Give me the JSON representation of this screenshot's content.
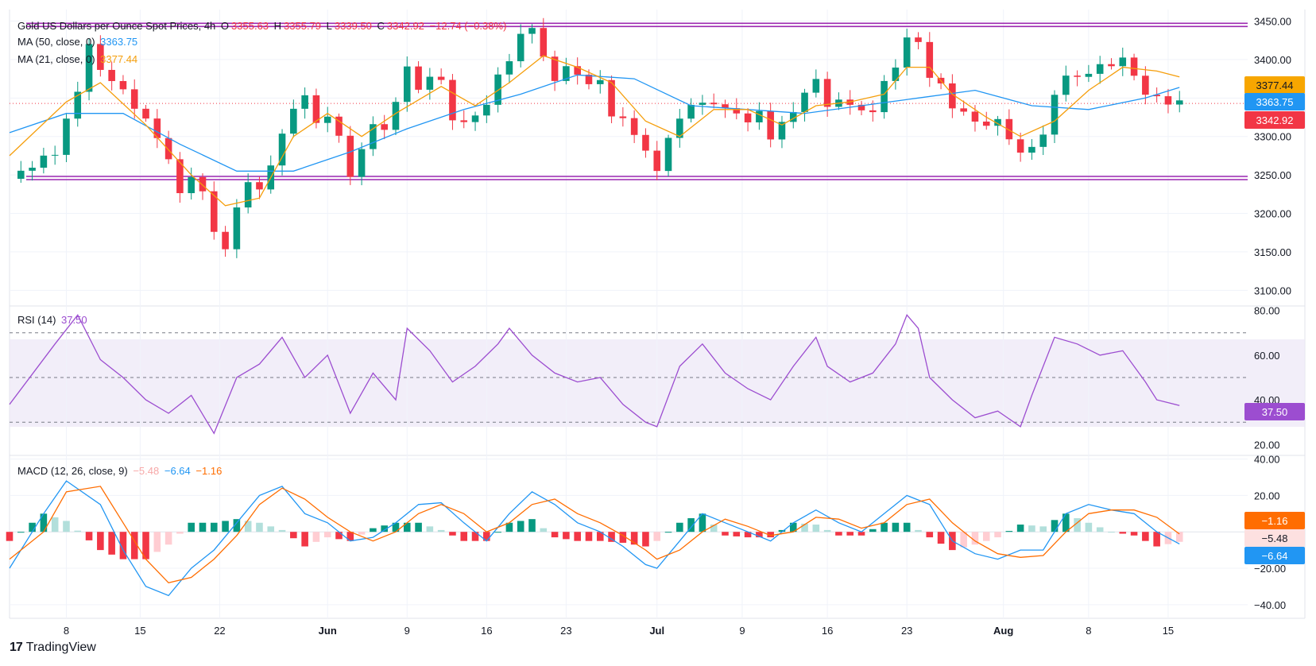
{
  "header": {
    "symbol": "Gold US Dollars per Ounce Spot Prices, 4h",
    "o_label": "O",
    "o_value": "3355.63",
    "h_label": "H",
    "h_value": "3355.79",
    "l_label": "L",
    "l_value": "3339.50",
    "c_label": "C",
    "c_value": "3342.92",
    "change": "−12.74 (−0.38%)"
  },
  "indicators": {
    "ma50": {
      "label": "MA (50, close, 0)",
      "value": "3363.75",
      "color": "#2196f3"
    },
    "ma21": {
      "label": "MA (21, close, 0)",
      "value": "3377.44",
      "color": "#f59e0b"
    },
    "rsi": {
      "label": "RSI (14)",
      "value": "37.50",
      "color": "#9c4dd0"
    },
    "macd": {
      "label": "MACD (12, 26, close, 9)",
      "hist": "−5.48",
      "macd": "−6.64",
      "signal": "−1.16",
      "hist_color": "#f7a8a8",
      "macd_color": "#2196f3",
      "signal_color": "#ff6d00"
    }
  },
  "price_tags": {
    "ma21": "3377.44",
    "ma50": "3363.75",
    "close": "3342.92",
    "rsi": "37.50",
    "macd_signal": "−1.16",
    "macd_hist": "−5.48",
    "macd_line": "−6.64"
  },
  "footer": {
    "logo": "17",
    "brand": "TradingView"
  },
  "chart_data": [
    {
      "type": "candlestick",
      "title": "Gold US Dollars per Ounce Spot Prices, 4h",
      "x_ticks": [
        "8",
        "15",
        "22",
        "Jun",
        "9",
        "16",
        "23",
        "Jul",
        "9",
        "16",
        "23",
        "Aug",
        "8",
        "15"
      ],
      "y_ticks": [
        "3450.00",
        "3400.00",
        "3350.00",
        "3300.00",
        "3250.00",
        "3200.00",
        "3150.00",
        "3100.00"
      ],
      "ylim": [
        3090,
        3465
      ],
      "close_path": [
        [
          0,
          3245
        ],
        [
          4,
          3280
        ],
        [
          6,
          3360
        ],
        [
          7,
          3420
        ],
        [
          8,
          3385
        ],
        [
          9,
          3375
        ],
        [
          11,
          3340
        ],
        [
          12,
          3320
        ],
        [
          13,
          3300
        ],
        [
          14,
          3270
        ],
        [
          15,
          3225
        ],
        [
          16,
          3250
        ],
        [
          17,
          3225
        ],
        [
          18,
          3180
        ],
        [
          19,
          3150
        ],
        [
          20,
          3210
        ],
        [
          21,
          3240
        ],
        [
          22,
          3230
        ],
        [
          23,
          3265
        ],
        [
          24,
          3300
        ],
        [
          25,
          3340
        ],
        [
          26,
          3350
        ],
        [
          27,
          3320
        ],
        [
          28,
          3325
        ],
        [
          29,
          3300
        ],
        [
          30,
          3250
        ],
        [
          31,
          3280
        ],
        [
          32,
          3320
        ],
        [
          33,
          3305
        ],
        [
          35,
          3390
        ],
        [
          36,
          3360
        ],
        [
          37,
          3380
        ],
        [
          38,
          3370
        ],
        [
          39,
          3325
        ],
        [
          40,
          3315
        ],
        [
          41,
          3330
        ],
        [
          42,
          3340
        ],
        [
          43,
          3380
        ],
        [
          44,
          3400
        ],
        [
          45,
          3430
        ],
        [
          46,
          3445
        ],
        [
          47,
          3400
        ],
        [
          48,
          3375
        ],
        [
          49,
          3390
        ],
        [
          50,
          3380
        ],
        [
          51,
          3370
        ],
        [
          52,
          3370
        ],
        [
          53,
          3330
        ],
        [
          54,
          3320
        ],
        [
          55,
          3305
        ],
        [
          56,
          3280
        ],
        [
          57,
          3255
        ],
        [
          58,
          3300
        ],
        [
          59,
          3320
        ],
        [
          60,
          3345
        ],
        [
          61,
          3340
        ],
        [
          62,
          3345
        ],
        [
          63,
          3335
        ],
        [
          64,
          3330
        ],
        [
          65,
          3320
        ],
        [
          66,
          3330
        ],
        [
          67,
          3300
        ],
        [
          68,
          3315
        ],
        [
          69,
          3335
        ],
        [
          70,
          3355
        ],
        [
          71,
          3375
        ],
        [
          72,
          3340
        ],
        [
          73,
          3345
        ],
        [
          74,
          3345
        ],
        [
          75,
          3330
        ],
        [
          76,
          3335
        ],
        [
          77,
          3370
        ],
        [
          78,
          3390
        ],
        [
          79,
          3430
        ],
        [
          80,
          3420
        ],
        [
          81,
          3380
        ],
        [
          82,
          3365
        ],
        [
          83,
          3340
        ],
        [
          84,
          3330
        ],
        [
          85,
          3320
        ],
        [
          86,
          3315
        ],
        [
          87,
          3320
        ],
        [
          88,
          3300
        ],
        [
          89,
          3275
        ],
        [
          90,
          3290
        ],
        [
          91,
          3300
        ],
        [
          92,
          3355
        ],
        [
          93,
          3380
        ],
        [
          94,
          3375
        ],
        [
          95,
          3385
        ],
        [
          96,
          3390
        ],
        [
          97,
          3395
        ],
        [
          98,
          3400
        ],
        [
          99,
          3380
        ],
        [
          100,
          3355
        ],
        [
          101,
          3350
        ],
        [
          102,
          3345
        ],
        [
          103,
          3342.92
        ]
      ],
      "ma50_path": [
        [
          0,
          3305
        ],
        [
          5,
          3330
        ],
        [
          10,
          3330
        ],
        [
          15,
          3290
        ],
        [
          20,
          3255
        ],
        [
          25,
          3255
        ],
        [
          30,
          3280
        ],
        [
          35,
          3310
        ],
        [
          40,
          3335
        ],
        [
          45,
          3355
        ],
        [
          50,
          3380
        ],
        [
          55,
          3375
        ],
        [
          60,
          3340
        ],
        [
          65,
          3335
        ],
        [
          70,
          3330
        ],
        [
          75,
          3340
        ],
        [
          80,
          3350
        ],
        [
          85,
          3360
        ],
        [
          90,
          3340
        ],
        [
          95,
          3335
        ],
        [
          100,
          3350
        ],
        [
          103,
          3363.75
        ]
      ],
      "ma21_path": [
        [
          0,
          3275
        ],
        [
          5,
          3345
        ],
        [
          8,
          3370
        ],
        [
          12,
          3315
        ],
        [
          16,
          3250
        ],
        [
          19,
          3210
        ],
        [
          22,
          3220
        ],
        [
          25,
          3300
        ],
        [
          28,
          3330
        ],
        [
          31,
          3300
        ],
        [
          34,
          3330
        ],
        [
          38,
          3365
        ],
        [
          41,
          3340
        ],
        [
          44,
          3370
        ],
        [
          47,
          3405
        ],
        [
          50,
          3390
        ],
        [
          53,
          3370
        ],
        [
          56,
          3320
        ],
        [
          59,
          3300
        ],
        [
          62,
          3335
        ],
        [
          65,
          3335
        ],
        [
          68,
          3315
        ],
        [
          71,
          3340
        ],
        [
          74,
          3345
        ],
        [
          77,
          3355
        ],
        [
          79,
          3390
        ],
        [
          81,
          3390
        ],
        [
          83,
          3355
        ],
        [
          86,
          3325
        ],
        [
          89,
          3300
        ],
        [
          92,
          3320
        ],
        [
          95,
          3360
        ],
        [
          98,
          3390
        ],
        [
          101,
          3385
        ],
        [
          103,
          3377.44
        ]
      ],
      "support_resistance": [
        3445,
        3246
      ]
    },
    {
      "type": "line",
      "title": "RSI (14)",
      "y_ticks": [
        "80.00",
        "60.00",
        "40.00",
        "20.00"
      ],
      "ylim": [
        18,
        82
      ],
      "levels": [
        70,
        50,
        30
      ],
      "values_path": [
        [
          0,
          38
        ],
        [
          4,
          65
        ],
        [
          6,
          78
        ],
        [
          8,
          58
        ],
        [
          10,
          50
        ],
        [
          12,
          40
        ],
        [
          14,
          34
        ],
        [
          16,
          42
        ],
        [
          18,
          25
        ],
        [
          20,
          50
        ],
        [
          22,
          56
        ],
        [
          24,
          68
        ],
        [
          26,
          50
        ],
        [
          28,
          60
        ],
        [
          30,
          34
        ],
        [
          32,
          52
        ],
        [
          34,
          40
        ],
        [
          35,
          72
        ],
        [
          37,
          62
        ],
        [
          39,
          48
        ],
        [
          41,
          55
        ],
        [
          43,
          65
        ],
        [
          44,
          72
        ],
        [
          46,
          60
        ],
        [
          48,
          52
        ],
        [
          50,
          48
        ],
        [
          52,
          50
        ],
        [
          54,
          38
        ],
        [
          56,
          30
        ],
        [
          57,
          28
        ],
        [
          59,
          55
        ],
        [
          61,
          65
        ],
        [
          63,
          52
        ],
        [
          65,
          45
        ],
        [
          67,
          40
        ],
        [
          69,
          55
        ],
        [
          71,
          68
        ],
        [
          72,
          55
        ],
        [
          74,
          48
        ],
        [
          76,
          52
        ],
        [
          78,
          65
        ],
        [
          79,
          78
        ],
        [
          80,
          72
        ],
        [
          81,
          50
        ],
        [
          83,
          40
        ],
        [
          85,
          32
        ],
        [
          87,
          35
        ],
        [
          89,
          28
        ],
        [
          90,
          42
        ],
        [
          92,
          68
        ],
        [
          94,
          65
        ],
        [
          96,
          60
        ],
        [
          98,
          62
        ],
        [
          100,
          48
        ],
        [
          101,
          40
        ],
        [
          103,
          37.5
        ]
      ]
    },
    {
      "type": "line",
      "title": "MACD (12, 26, close, 9)",
      "y_ticks": [
        "40.00",
        "20.00",
        "−20.00",
        "−40.00"
      ],
      "ylim": [
        -44,
        42
      ],
      "macd_path": [
        [
          0,
          -20
        ],
        [
          3,
          10
        ],
        [
          5,
          28
        ],
        [
          8,
          15
        ],
        [
          10,
          -10
        ],
        [
          12,
          -30
        ],
        [
          14,
          -35
        ],
        [
          16,
          -20
        ],
        [
          18,
          -10
        ],
        [
          20,
          5
        ],
        [
          22,
          20
        ],
        [
          24,
          25
        ],
        [
          26,
          10
        ],
        [
          28,
          5
        ],
        [
          30,
          -5
        ],
        [
          32,
          -3
        ],
        [
          34,
          5
        ],
        [
          36,
          15
        ],
        [
          38,
          16
        ],
        [
          40,
          5
        ],
        [
          42,
          -5
        ],
        [
          44,
          10
        ],
        [
          46,
          22
        ],
        [
          48,
          15
        ],
        [
          50,
          5
        ],
        [
          52,
          0
        ],
        [
          54,
          -8
        ],
        [
          56,
          -18
        ],
        [
          57,
          -20
        ],
        [
          59,
          -5
        ],
        [
          61,
          10
        ],
        [
          63,
          5
        ],
        [
          65,
          0
        ],
        [
          67,
          -5
        ],
        [
          69,
          5
        ],
        [
          71,
          12
        ],
        [
          73,
          5
        ],
        [
          75,
          0
        ],
        [
          77,
          10
        ],
        [
          79,
          20
        ],
        [
          81,
          15
        ],
        [
          83,
          -5
        ],
        [
          85,
          -12
        ],
        [
          87,
          -15
        ],
        [
          89,
          -10
        ],
        [
          91,
          -10
        ],
        [
          93,
          10
        ],
        [
          95,
          15
        ],
        [
          97,
          12
        ],
        [
          99,
          10
        ],
        [
          101,
          0
        ],
        [
          103,
          -6.64
        ]
      ],
      "signal_path": [
        [
          0,
          -15
        ],
        [
          3,
          0
        ],
        [
          5,
          22
        ],
        [
          8,
          25
        ],
        [
          10,
          5
        ],
        [
          12,
          -15
        ],
        [
          14,
          -28
        ],
        [
          16,
          -25
        ],
        [
          18,
          -15
        ],
        [
          20,
          -2
        ],
        [
          22,
          15
        ],
        [
          24,
          24
        ],
        [
          26,
          18
        ],
        [
          28,
          8
        ],
        [
          30,
          0
        ],
        [
          32,
          -5
        ],
        [
          34,
          0
        ],
        [
          36,
          10
        ],
        [
          38,
          15
        ],
        [
          40,
          10
        ],
        [
          42,
          0
        ],
        [
          44,
          5
        ],
        [
          46,
          15
        ],
        [
          48,
          18
        ],
        [
          50,
          10
        ],
        [
          52,
          5
        ],
        [
          54,
          -2
        ],
        [
          56,
          -10
        ],
        [
          57,
          -15
        ],
        [
          59,
          -10
        ],
        [
          61,
          0
        ],
        [
          63,
          7
        ],
        [
          65,
          3
        ],
        [
          67,
          -2
        ],
        [
          69,
          0
        ],
        [
          71,
          8
        ],
        [
          73,
          7
        ],
        [
          75,
          2
        ],
        [
          77,
          5
        ],
        [
          79,
          15
        ],
        [
          81,
          18
        ],
        [
          83,
          5
        ],
        [
          85,
          -5
        ],
        [
          87,
          -12
        ],
        [
          89,
          -14
        ],
        [
          91,
          -13
        ],
        [
          93,
          0
        ],
        [
          95,
          10
        ],
        [
          97,
          12
        ],
        [
          99,
          12
        ],
        [
          101,
          8
        ],
        [
          103,
          -1.16
        ]
      ],
      "hist_value": -5.48
    }
  ]
}
